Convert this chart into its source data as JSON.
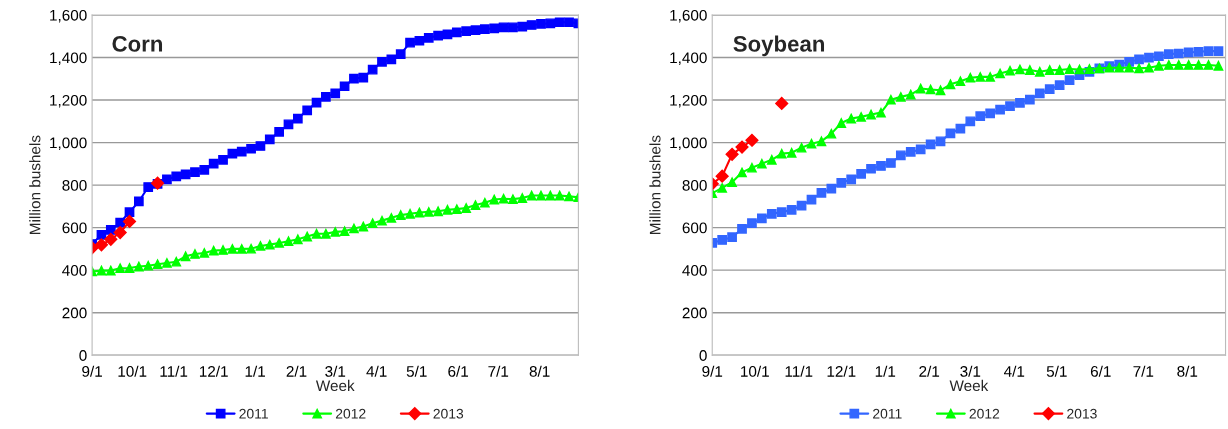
{
  "chart_data": [
    {
      "type": "line",
      "title": "Corn",
      "xlabel": "Week",
      "ylabel": "Million bushels",
      "grid": "y",
      "legend": "bottom",
      "xlim": [
        "2011-09-01",
        "2012-08-30"
      ],
      "ylim": [
        0,
        1600
      ],
      "xticks": [
        {
          "value": "2011-09-01",
          "label": "9/1"
        },
        {
          "value": "2011-10-01",
          "label": "10/1"
        },
        {
          "value": "2011-11-01",
          "label": "11/1"
        },
        {
          "value": "2011-12-01",
          "label": "12/1"
        },
        {
          "value": "2012-01-01",
          "label": "1/1"
        },
        {
          "value": "2012-02-01",
          "label": "2/1"
        },
        {
          "value": "2012-03-01",
          "label": "3/1"
        },
        {
          "value": "2012-04-01",
          "label": "4/1"
        },
        {
          "value": "2012-05-01",
          "label": "5/1"
        },
        {
          "value": "2012-06-01",
          "label": "6/1"
        },
        {
          "value": "2012-07-01",
          "label": "7/1"
        },
        {
          "value": "2012-08-01",
          "label": "8/1"
        },
        {
          "value": "2012-08-30",
          "label": null
        }
      ],
      "yticks": [
        0,
        200,
        400,
        600,
        800,
        {
          "value": 1000,
          "label": "1,000"
        },
        {
          "value": 1200,
          "label": "1,200"
        },
        {
          "value": 1400,
          "label": "1,400"
        },
        {
          "value": 1600,
          "label": "1,600"
        }
      ],
      "x": [
        "2011-09-01",
        "2011-09-08",
        "2011-09-15",
        "2011-09-22",
        "2011-09-29",
        "2011-10-06",
        "2011-10-13",
        "2011-10-20",
        "2011-10-27",
        "2011-11-03",
        "2011-11-10",
        "2011-11-17",
        "2011-11-24",
        "2011-12-01",
        "2011-12-08",
        "2011-12-15",
        "2011-12-22",
        "2011-12-29",
        "2012-01-05",
        "2012-01-12",
        "2012-01-19",
        "2012-01-26",
        "2012-02-02",
        "2012-02-09",
        "2012-02-16",
        "2012-02-23",
        "2012-03-01",
        "2012-03-08",
        "2012-03-15",
        "2012-03-22",
        "2012-03-29",
        "2012-04-05",
        "2012-04-12",
        "2012-04-19",
        "2012-04-26",
        "2012-05-03",
        "2012-05-10",
        "2012-05-17",
        "2012-05-24",
        "2012-05-31",
        "2012-06-07",
        "2012-06-14",
        "2012-06-21",
        "2012-06-28",
        "2012-07-05",
        "2012-07-12",
        "2012-07-19",
        "2012-07-26",
        "2012-08-02",
        "2012-08-09",
        "2012-08-16",
        "2012-08-23",
        "2012-08-30"
      ],
      "series": [
        {
          "name": "2011",
          "color": "#0000ff",
          "marker": "square",
          "values": [
            523,
            566,
            589,
            624,
            673,
            723,
            791,
            806,
            827,
            841,
            850,
            861,
            872,
            901,
            919,
            948,
            957,
            971,
            984,
            1015,
            1050,
            1086,
            1113,
            1152,
            1188,
            1215,
            1231,
            1265,
            1301,
            1306,
            1343,
            1380,
            1391,
            1416,
            1470,
            1479,
            1493,
            1503,
            1509,
            1518,
            1524,
            1529,
            1534,
            1537,
            1542,
            1542,
            1545,
            1553,
            1558,
            1561,
            1566,
            1566,
            1561
          ]
        },
        {
          "name": "2012",
          "color": "#00ff00",
          "marker": "triangle",
          "values": [
            394,
            398,
            398,
            409,
            410,
            417,
            421,
            428,
            434,
            440,
            465,
            476,
            481,
            492,
            495,
            500,
            500,
            501,
            514,
            520,
            528,
            536,
            545,
            558,
            571,
            571,
            580,
            583,
            596,
            605,
            621,
            633,
            646,
            659,
            665,
            671,
            674,
            677,
            684,
            687,
            692,
            706,
            717,
            732,
            736,
            734,
            739,
            751,
            751,
            751,
            751,
            747,
            743
          ]
        },
        {
          "name": "2013",
          "color": "#ff0000",
          "marker": "diamond",
          "x": [
            "2011-09-01",
            "2011-09-08",
            "2011-09-15",
            "2011-09-22",
            "2011-09-29",
            "2011-10-06",
            "2011-10-13",
            "2011-10-20"
          ],
          "values": [
            505,
            519,
            545,
            577,
            629,
            null,
            null,
            809
          ]
        }
      ]
    },
    {
      "type": "line",
      "title": "Soybean",
      "xlabel": "Week",
      "ylabel": "Million bushels",
      "grid": "y",
      "legend": "bottom",
      "xlim": [
        "2011-09-01",
        "2012-08-28"
      ],
      "ylim": [
        0,
        1600
      ],
      "xticks": [
        {
          "value": "2011-09-01",
          "label": "9/1"
        },
        {
          "value": "2011-10-01",
          "label": "10/1"
        },
        {
          "value": "2011-11-01",
          "label": "11/1"
        },
        {
          "value": "2011-12-01",
          "label": "12/1"
        },
        {
          "value": "2012-01-01",
          "label": "1/1"
        },
        {
          "value": "2012-02-01",
          "label": "2/1"
        },
        {
          "value": "2012-03-01",
          "label": "3/1"
        },
        {
          "value": "2012-04-01",
          "label": "4/1"
        },
        {
          "value": "2012-05-01",
          "label": "5/1"
        },
        {
          "value": "2012-06-01",
          "label": "6/1"
        },
        {
          "value": "2012-07-01",
          "label": "7/1"
        },
        {
          "value": "2012-08-01",
          "label": "8/1"
        }
      ],
      "yticks": [
        0,
        200,
        400,
        600,
        800,
        {
          "value": 1000,
          "label": "1,000"
        },
        {
          "value": 1200,
          "label": "1,200"
        },
        {
          "value": 1400,
          "label": "1,400"
        },
        {
          "value": 1600,
          "label": "1,600"
        }
      ],
      "x": [
        "2011-09-01",
        "2011-09-08",
        "2011-09-15",
        "2011-09-22",
        "2011-09-29",
        "2011-10-06",
        "2011-10-13",
        "2011-10-20",
        "2011-10-27",
        "2011-11-03",
        "2011-11-10",
        "2011-11-17",
        "2011-11-24",
        "2011-12-01",
        "2011-12-08",
        "2011-12-15",
        "2011-12-22",
        "2011-12-29",
        "2012-01-05",
        "2012-01-12",
        "2012-01-19",
        "2012-01-26",
        "2012-02-02",
        "2012-02-09",
        "2012-02-16",
        "2012-02-23",
        "2012-03-01",
        "2012-03-08",
        "2012-03-15",
        "2012-03-22",
        "2012-03-29",
        "2012-04-05",
        "2012-04-12",
        "2012-04-19",
        "2012-04-26",
        "2012-05-03",
        "2012-05-10",
        "2012-05-17",
        "2012-05-24",
        "2012-05-31",
        "2012-06-07",
        "2012-06-14",
        "2012-06-21",
        "2012-06-28",
        "2012-07-05",
        "2012-07-12",
        "2012-07-19",
        "2012-07-26",
        "2012-08-02",
        "2012-08-09",
        "2012-08-16",
        "2012-08-23"
      ],
      "series": [
        {
          "name": "2011",
          "color": "#3366ff",
          "marker": "square",
          "values": [
            528,
            542,
            555,
            594,
            621,
            644,
            665,
            673,
            684,
            704,
            732,
            764,
            783,
            811,
            827,
            853,
            877,
            890,
            904,
            940,
            956,
            968,
            992,
            1006,
            1043,
            1066,
            1100,
            1124,
            1137,
            1155,
            1171,
            1187,
            1202,
            1231,
            1251,
            1270,
            1294,
            1317,
            1333,
            1349,
            1360,
            1367,
            1380,
            1391,
            1400,
            1406,
            1416,
            1419,
            1424,
            1427,
            1430,
            1430
          ]
        },
        {
          "name": "2012",
          "color": "#00ff00",
          "marker": "triangle",
          "values": [
            762,
            787,
            814,
            860,
            882,
            901,
            919,
            948,
            952,
            976,
            995,
            1006,
            1042,
            1092,
            1113,
            1121,
            1132,
            1141,
            1202,
            1215,
            1226,
            1254,
            1250,
            1246,
            1274,
            1289,
            1305,
            1309,
            1309,
            1325,
            1338,
            1344,
            1341,
            1333,
            1341,
            1341,
            1346,
            1344,
            1346,
            1349,
            1352,
            1352,
            1352,
            1349,
            1352,
            1361,
            1365,
            1365,
            1365,
            1365,
            1365,
            1361
          ]
        },
        {
          "name": "2013",
          "color": "#ff0000",
          "marker": "diamond",
          "x": [
            "2011-09-01",
            "2011-09-08",
            "2011-09-15",
            "2011-09-22",
            "2011-09-29",
            "2011-10-06",
            "2011-10-13",
            "2011-10-20"
          ],
          "values": [
            806,
            842,
            945,
            979,
            1011,
            null,
            null,
            1184
          ]
        }
      ]
    }
  ]
}
